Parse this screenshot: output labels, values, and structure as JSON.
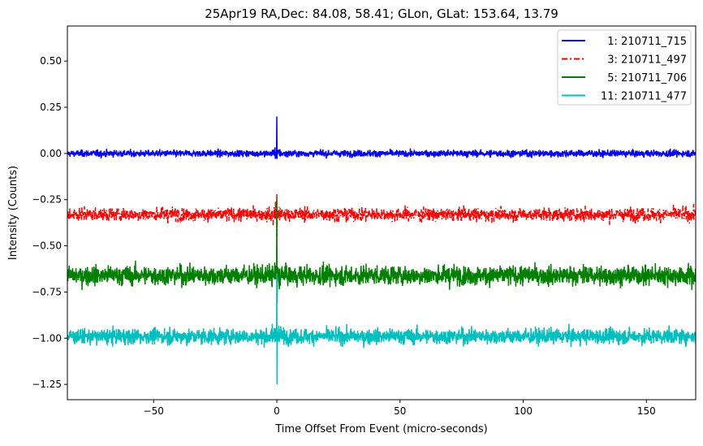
{
  "chart_data": {
    "type": "line",
    "title": "25Apr19 RA,Dec:   84.08,  58.41; GLon, GLat:  153.64,  13.79",
    "xlabel": "Time Offset From Event (micro-seconds)",
    "ylabel": "Intensity (Counts)",
    "xlim": [
      -85,
      170
    ],
    "ylim": [
      -1.333,
      0.69
    ],
    "xticks": [
      -50,
      0,
      50,
      100,
      150
    ],
    "xtick_labels": [
      "−50",
      "0",
      "50",
      "100",
      "150"
    ],
    "yticks": [
      0.5,
      0.25,
      0.0,
      -0.25,
      -0.5,
      -0.75,
      -1.0,
      -1.25
    ],
    "ytick_labels": [
      "0.50",
      "0.25",
      "0.00",
      "−0.25",
      "−0.50",
      "−0.75",
      "−1.00",
      "−1.25"
    ],
    "grid": false,
    "legend_position": "top-right",
    "series": [
      {
        "name": "  1: 210711_715",
        "color": "#0000ff",
        "style": "solid",
        "baseline": 0.0,
        "noise_std": 0.012,
        "spike": {
          "x": 0,
          "max": 0.2,
          "min": -0.03
        }
      },
      {
        "name": "  3: 210711_497",
        "color": "#ff0000",
        "style": "dashdot",
        "baseline": -0.33,
        "noise_std": 0.024,
        "spike": {
          "x": 0,
          "max": -0.22,
          "min": -0.45
        }
      },
      {
        "name": "  5: 210711_706",
        "color": "#008000",
        "style": "solid",
        "baseline": -0.66,
        "noise_std": 0.035,
        "spike": {
          "x": 0,
          "max": -0.25,
          "min": -0.81
        }
      },
      {
        "name": "11: 210711_477",
        "color": "#00bfbf",
        "style": "solid",
        "baseline": -0.99,
        "noise_std": 0.028,
        "spike": {
          "x": 0,
          "max": -0.65,
          "min": -1.25
        }
      }
    ]
  }
}
